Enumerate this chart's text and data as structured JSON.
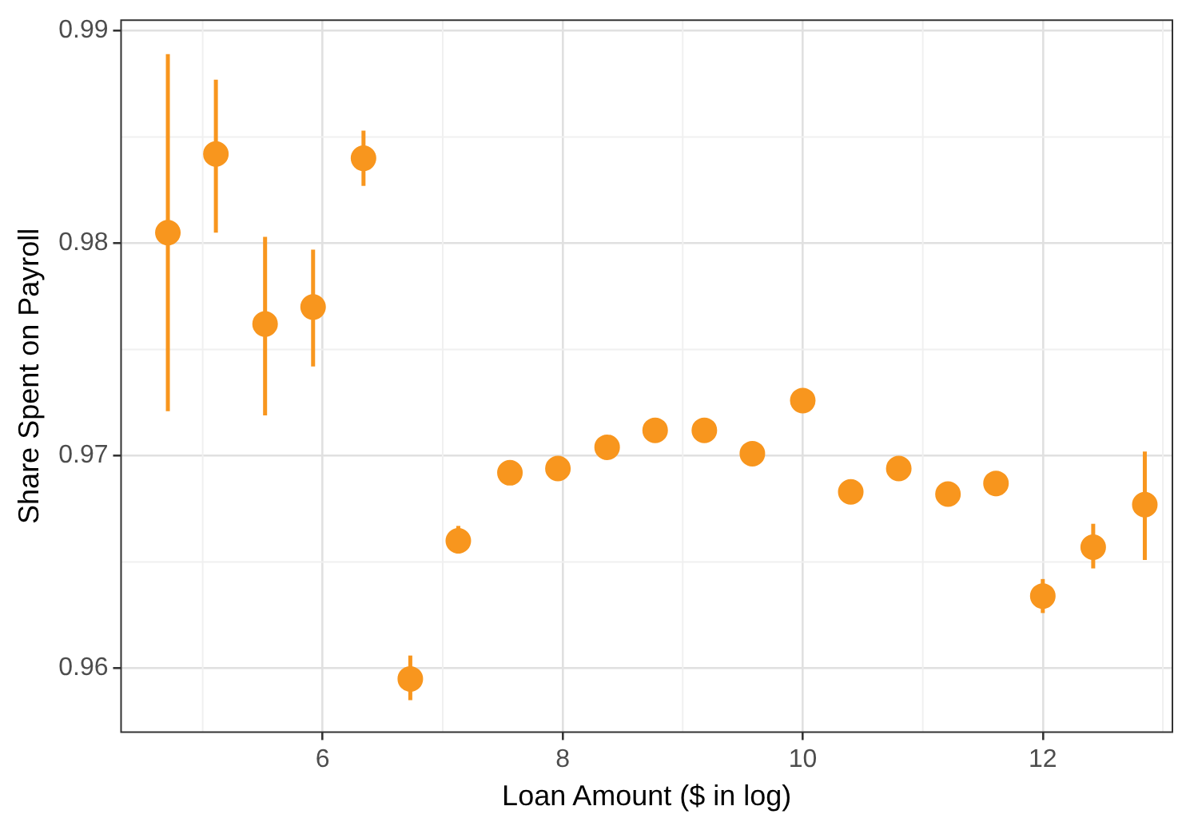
{
  "chart_data": {
    "type": "scatter",
    "xlabel": "Loan Amount ($ in log)",
    "ylabel": "Share Spent on Payroll",
    "x": [
      4.71,
      5.11,
      5.52,
      5.92,
      6.34,
      6.73,
      7.13,
      7.56,
      7.96,
      8.37,
      8.77,
      9.18,
      9.58,
      10.0,
      10.4,
      10.8,
      11.21,
      11.61,
      12.0,
      12.42,
      12.85
    ],
    "values": [
      0.9805,
      0.9842,
      0.9762,
      0.977,
      0.984,
      0.9595,
      0.966,
      0.9692,
      0.9694,
      0.9704,
      0.9712,
      0.9712,
      0.9701,
      0.9726,
      0.9683,
      0.9694,
      0.9682,
      0.9687,
      0.9634,
      0.9657,
      0.9677
    ],
    "errors": [
      [
        0.9721,
        0.9889
      ],
      [
        0.9805,
        0.9877
      ],
      [
        0.9719,
        0.9803
      ],
      [
        0.9742,
        0.9797
      ],
      [
        0.9827,
        0.9853
      ],
      [
        0.9585,
        0.9606
      ],
      [
        0.9654,
        0.9667
      ],
      null,
      null,
      null,
      null,
      null,
      null,
      null,
      null,
      null,
      null,
      [
        0.9681,
        0.9691
      ],
      [
        0.9626,
        0.9642
      ],
      [
        0.9647,
        0.9668
      ],
      [
        0.9651,
        0.9702
      ]
    ],
    "color": "#f8961e",
    "marker": "circle",
    "grid": true,
    "xlim": [
      4.32,
      13.08
    ],
    "xticks": [
      6,
      8,
      10,
      12
    ],
    "ylim": [
      0.957,
      0.9905
    ],
    "yticks": [
      0.96,
      0.97,
      0.98,
      0.99
    ]
  }
}
